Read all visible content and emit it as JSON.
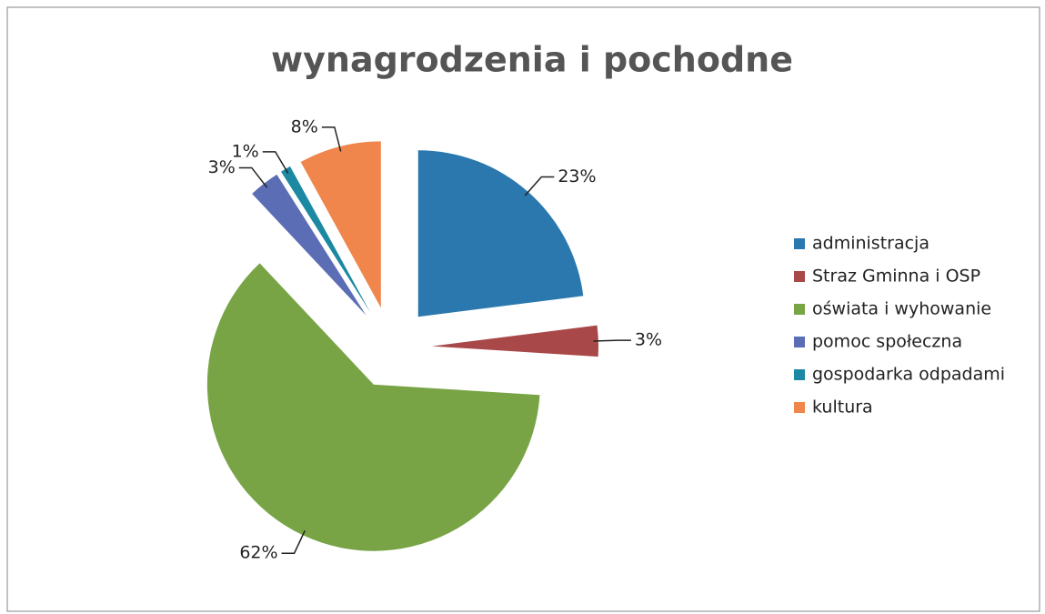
{
  "chart_data": {
    "type": "pie",
    "title": "wynagrodzenia i pochodne",
    "categories": [
      "administracja",
      "Straz Gminna i OSP",
      "oświata i wyhowanie",
      "pomoc społeczna",
      "gospodarka odpadami",
      "kultura"
    ],
    "values": [
      23,
      3,
      62,
      3,
      1,
      8
    ],
    "value_labels": [
      "23%",
      "3%",
      "62%",
      "3%",
      "1%",
      "8%"
    ],
    "colors": [
      "#2a78ad",
      "#a84848",
      "#78a446",
      "#5b6db4",
      "#1b89a2",
      "#f0864c"
    ],
    "legend": "right"
  }
}
